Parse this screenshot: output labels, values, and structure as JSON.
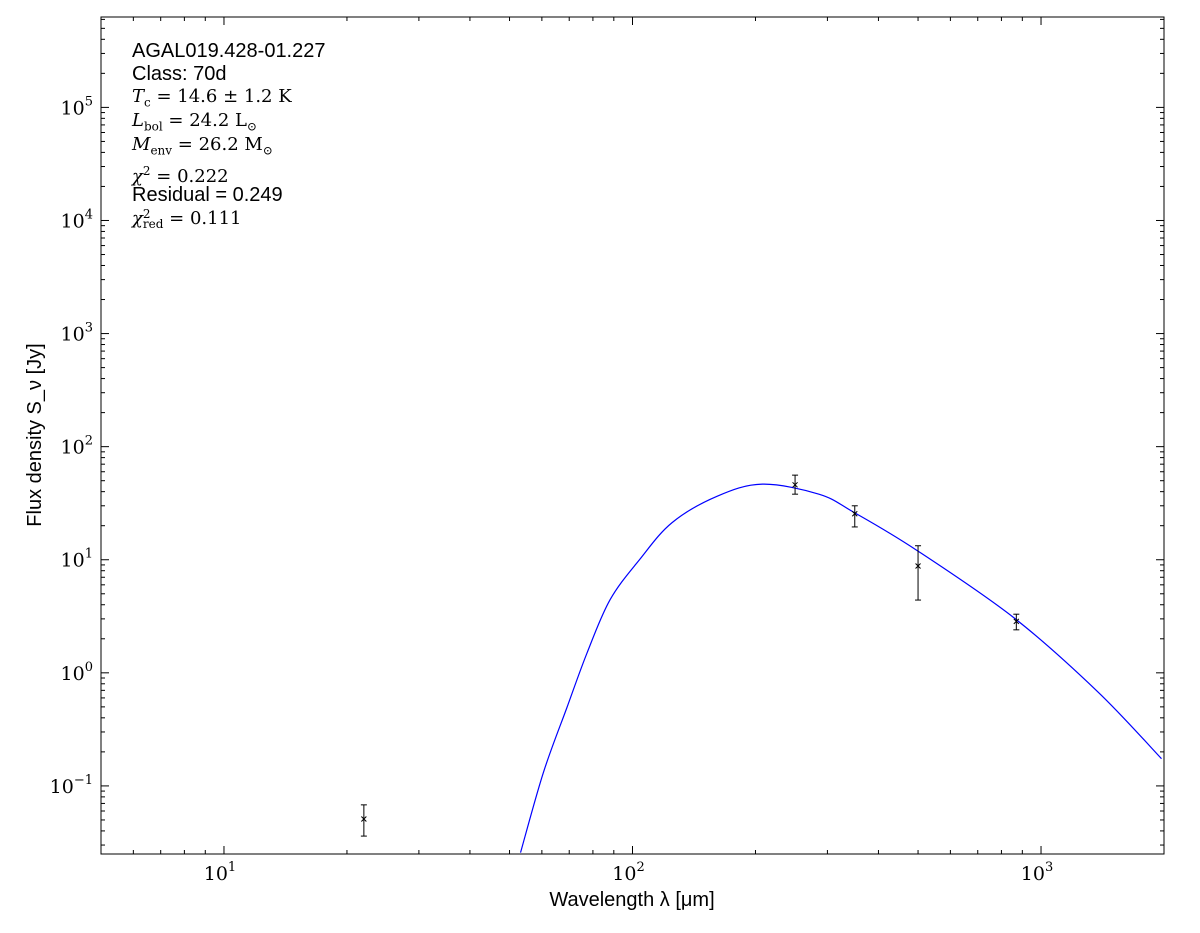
{
  "chart_data": {
    "type": "scatter",
    "xlabel": "Wavelength λ [μm]",
    "ylabel": "Flux density S_ν [Jy]",
    "xscale": "log",
    "yscale": "log",
    "xlim": [
      5,
      2000
    ],
    "ylim": [
      0.025,
      630000
    ],
    "x_ticks": [
      {
        "value": 10,
        "label": "10",
        "exp": "1"
      },
      {
        "value": 100,
        "label": "10",
        "exp": "2"
      },
      {
        "value": 1000,
        "label": "10",
        "exp": "3"
      }
    ],
    "y_ticks": [
      {
        "value": 0.1,
        "label": "10",
        "exp": "−1"
      },
      {
        "value": 1,
        "label": "10",
        "exp": "0"
      },
      {
        "value": 10,
        "label": "10",
        "exp": "1"
      },
      {
        "value": 100,
        "label": "10",
        "exp": "2"
      },
      {
        "value": 1000,
        "label": "10",
        "exp": "3"
      },
      {
        "value": 10000,
        "label": "10",
        "exp": "4"
      },
      {
        "value": 100000,
        "label": "10",
        "exp": "5"
      }
    ],
    "grid": false,
    "points": [
      {
        "x": 22,
        "y": 0.051,
        "ylow": 0.036,
        "yhigh": 0.068
      },
      {
        "x": 250,
        "y": 46,
        "ylow": 38,
        "yhigh": 56
      },
      {
        "x": 350,
        "y": 25.5,
        "ylow": 19.5,
        "yhigh": 30
      },
      {
        "x": 500,
        "y": 8.8,
        "ylow": 4.4,
        "yhigh": 13.3
      },
      {
        "x": 870,
        "y": 2.85,
        "ylow": 2.4,
        "yhigh": 3.3
      }
    ],
    "point_color": "#000000",
    "model_color": "#0000ff",
    "model_curve": [
      [
        53.2,
        0.0257
      ],
      [
        60.5,
        0.131
      ],
      [
        69.2,
        0.5
      ],
      [
        77.4,
        1.5
      ],
      [
        88.1,
        4.42
      ],
      [
        104,
        10.0
      ],
      [
        125,
        21.3
      ],
      [
        161,
        36.4
      ],
      [
        208,
        46.6
      ],
      [
        286,
        38
      ],
      [
        348,
        26.3
      ],
      [
        495,
        12.2
      ],
      [
        859,
        3.06
      ],
      [
        1377,
        0.68
      ],
      [
        1972,
        0.174
      ]
    ]
  },
  "annotation": {
    "source": "AGAL019.428-01.227",
    "class_text": "Class: 70d",
    "tc": {
      "sym": "T",
      "sub": "c",
      "rest": " = 14.6 ± 1.2 K"
    },
    "lbol": {
      "sym": "L",
      "sub": "bol",
      "rest": " = 24.2 L",
      "unit_sub": "⊙"
    },
    "menv": {
      "sym": "M",
      "sub": "env",
      "rest": " = 26.2 M",
      "unit_sub": "⊙"
    },
    "chi2": {
      "sym": "χ",
      "sup": "2",
      "rest": " = 0.222"
    },
    "residual": "Residual = 0.249",
    "chi2red": {
      "sym": "χ",
      "sup": "2",
      "sub": "red",
      "rest": " = 0.111"
    }
  }
}
